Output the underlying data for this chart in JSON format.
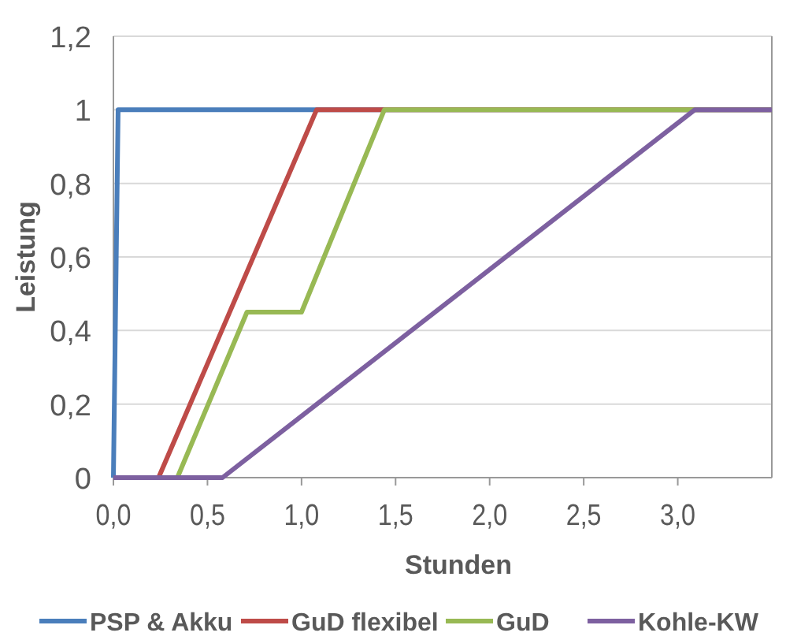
{
  "chart_data": {
    "type": "line",
    "xlabel": "Stunden",
    "ylabel": "Leistung",
    "xlim": [
      0,
      3.5
    ],
    "xticks": [
      {
        "value": 0,
        "label": "0,0"
      },
      {
        "value": 0.5,
        "label": "0,5"
      },
      {
        "value": 1,
        "label": "1,0"
      },
      {
        "value": 1.5,
        "label": "1,5"
      },
      {
        "value": 2,
        "label": "2,0"
      },
      {
        "value": 2.5,
        "label": "2,5"
      },
      {
        "value": 3,
        "label": "3,0"
      }
    ],
    "ylim": [
      0,
      1.2
    ],
    "yticks": [
      0,
      {
        "value": 0.2,
        "label": "0,2"
      },
      {
        "value": 0.4,
        "label": "0,4"
      },
      {
        "value": 0.6,
        "label": "0,6"
      },
      {
        "value": 0.8,
        "label": "0,8"
      },
      1,
      {
        "value": 1.2,
        "label": "1,2"
      }
    ],
    "grid": "y",
    "legend": "bottom",
    "marker": "none",
    "line_style": "solid",
    "series": [
      {
        "name": "PSP & Akku",
        "color": "#4a7ebb",
        "x": [
          0,
          0.025,
          3.5
        ],
        "values": [
          0,
          1,
          1
        ]
      },
      {
        "name": "GuD flexibel",
        "color": "#be4b48",
        "x": [
          0,
          0.24,
          1.08,
          3.5
        ],
        "values": [
          0,
          0,
          1,
          1
        ]
      },
      {
        "name": "GuD",
        "color": "#98b954",
        "x": [
          0,
          0.34,
          0.71,
          1.0,
          1.44,
          3.5
        ],
        "values": [
          0,
          0,
          0.45,
          0.45,
          1,
          1
        ]
      },
      {
        "name": "Kohle-KW",
        "color": "#7d60a0",
        "x": [
          0,
          0.58,
          3.09,
          3.5
        ],
        "values": [
          0,
          0,
          1,
          1
        ]
      }
    ]
  }
}
